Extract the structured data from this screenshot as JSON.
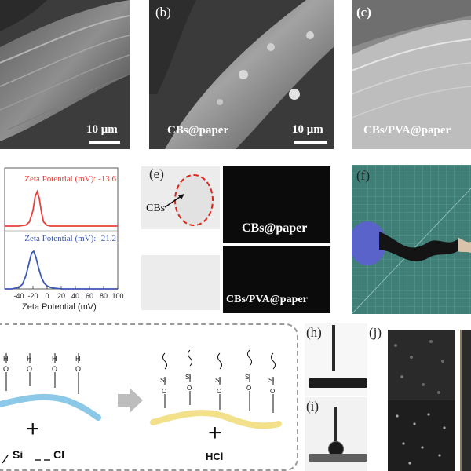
{
  "panels": {
    "a": {
      "scale": "10 μm"
    },
    "b": {
      "label": "(b)",
      "sample": "CBs@paper",
      "scale": "10 μm"
    },
    "c": {
      "label": "(c)",
      "sample": "CBs/PVA@paper"
    },
    "e": {
      "label": "(e)",
      "pointer": "CBs",
      "tile_top": "CBs@paper",
      "tile_bottom": "CBs/PVA@paper"
    },
    "f": {
      "label": "(f)"
    },
    "g": {
      "product_1": "+",
      "reagent": "Si",
      "reagent_2": "Cl",
      "product_2": "+",
      "byproduct": "HCl",
      "h": "H",
      "o": "O",
      "si": "Si"
    },
    "h": {
      "label": "(h)"
    },
    "i": {
      "label": "(i)"
    },
    "j": {
      "label": "(j)"
    }
  },
  "chart_data": {
    "type": "line",
    "xlabel": "Zeta Potential  (mV)",
    "xlim": [
      -60,
      100
    ],
    "xticks": [
      -40,
      -20,
      0,
      20,
      40,
      60,
      80,
      100
    ],
    "xtick_labels": [
      "-40",
      "-20",
      "0",
      "20",
      "40",
      "60",
      "80",
      "100"
    ],
    "series": [
      {
        "annotation": "Zeta Potential (mV): -13.6",
        "color": "#e8413c",
        "peak": -13.6,
        "x": [
          -60,
          -40,
          -30,
          -25,
          -20,
          -17,
          -14,
          -11,
          -8,
          -5,
          0,
          5,
          10,
          20,
          100
        ],
        "y": [
          0,
          0,
          0.03,
          0.12,
          0.45,
          0.85,
          1.0,
          0.8,
          0.4,
          0.12,
          0.02,
          0,
          0,
          0,
          0
        ]
      },
      {
        "annotation": "Zeta Potential (mV): -21.2",
        "color": "#3b58b8",
        "peak": -21.2,
        "x": [
          -60,
          -50,
          -40,
          -35,
          -30,
          -26,
          -22,
          -19,
          -16,
          -12,
          -8,
          -4,
          0,
          5,
          10,
          20,
          100
        ],
        "y": [
          0,
          0,
          0.04,
          0.12,
          0.35,
          0.65,
          0.95,
          1.0,
          0.85,
          0.55,
          0.3,
          0.15,
          0.08,
          0.04,
          0.02,
          0,
          0
        ]
      }
    ]
  },
  "colors": {
    "red": "#e8413c",
    "blue": "#3b58b8",
    "paper_blue": "#8cc8e8",
    "paper_yellow": "#f2e08a"
  }
}
